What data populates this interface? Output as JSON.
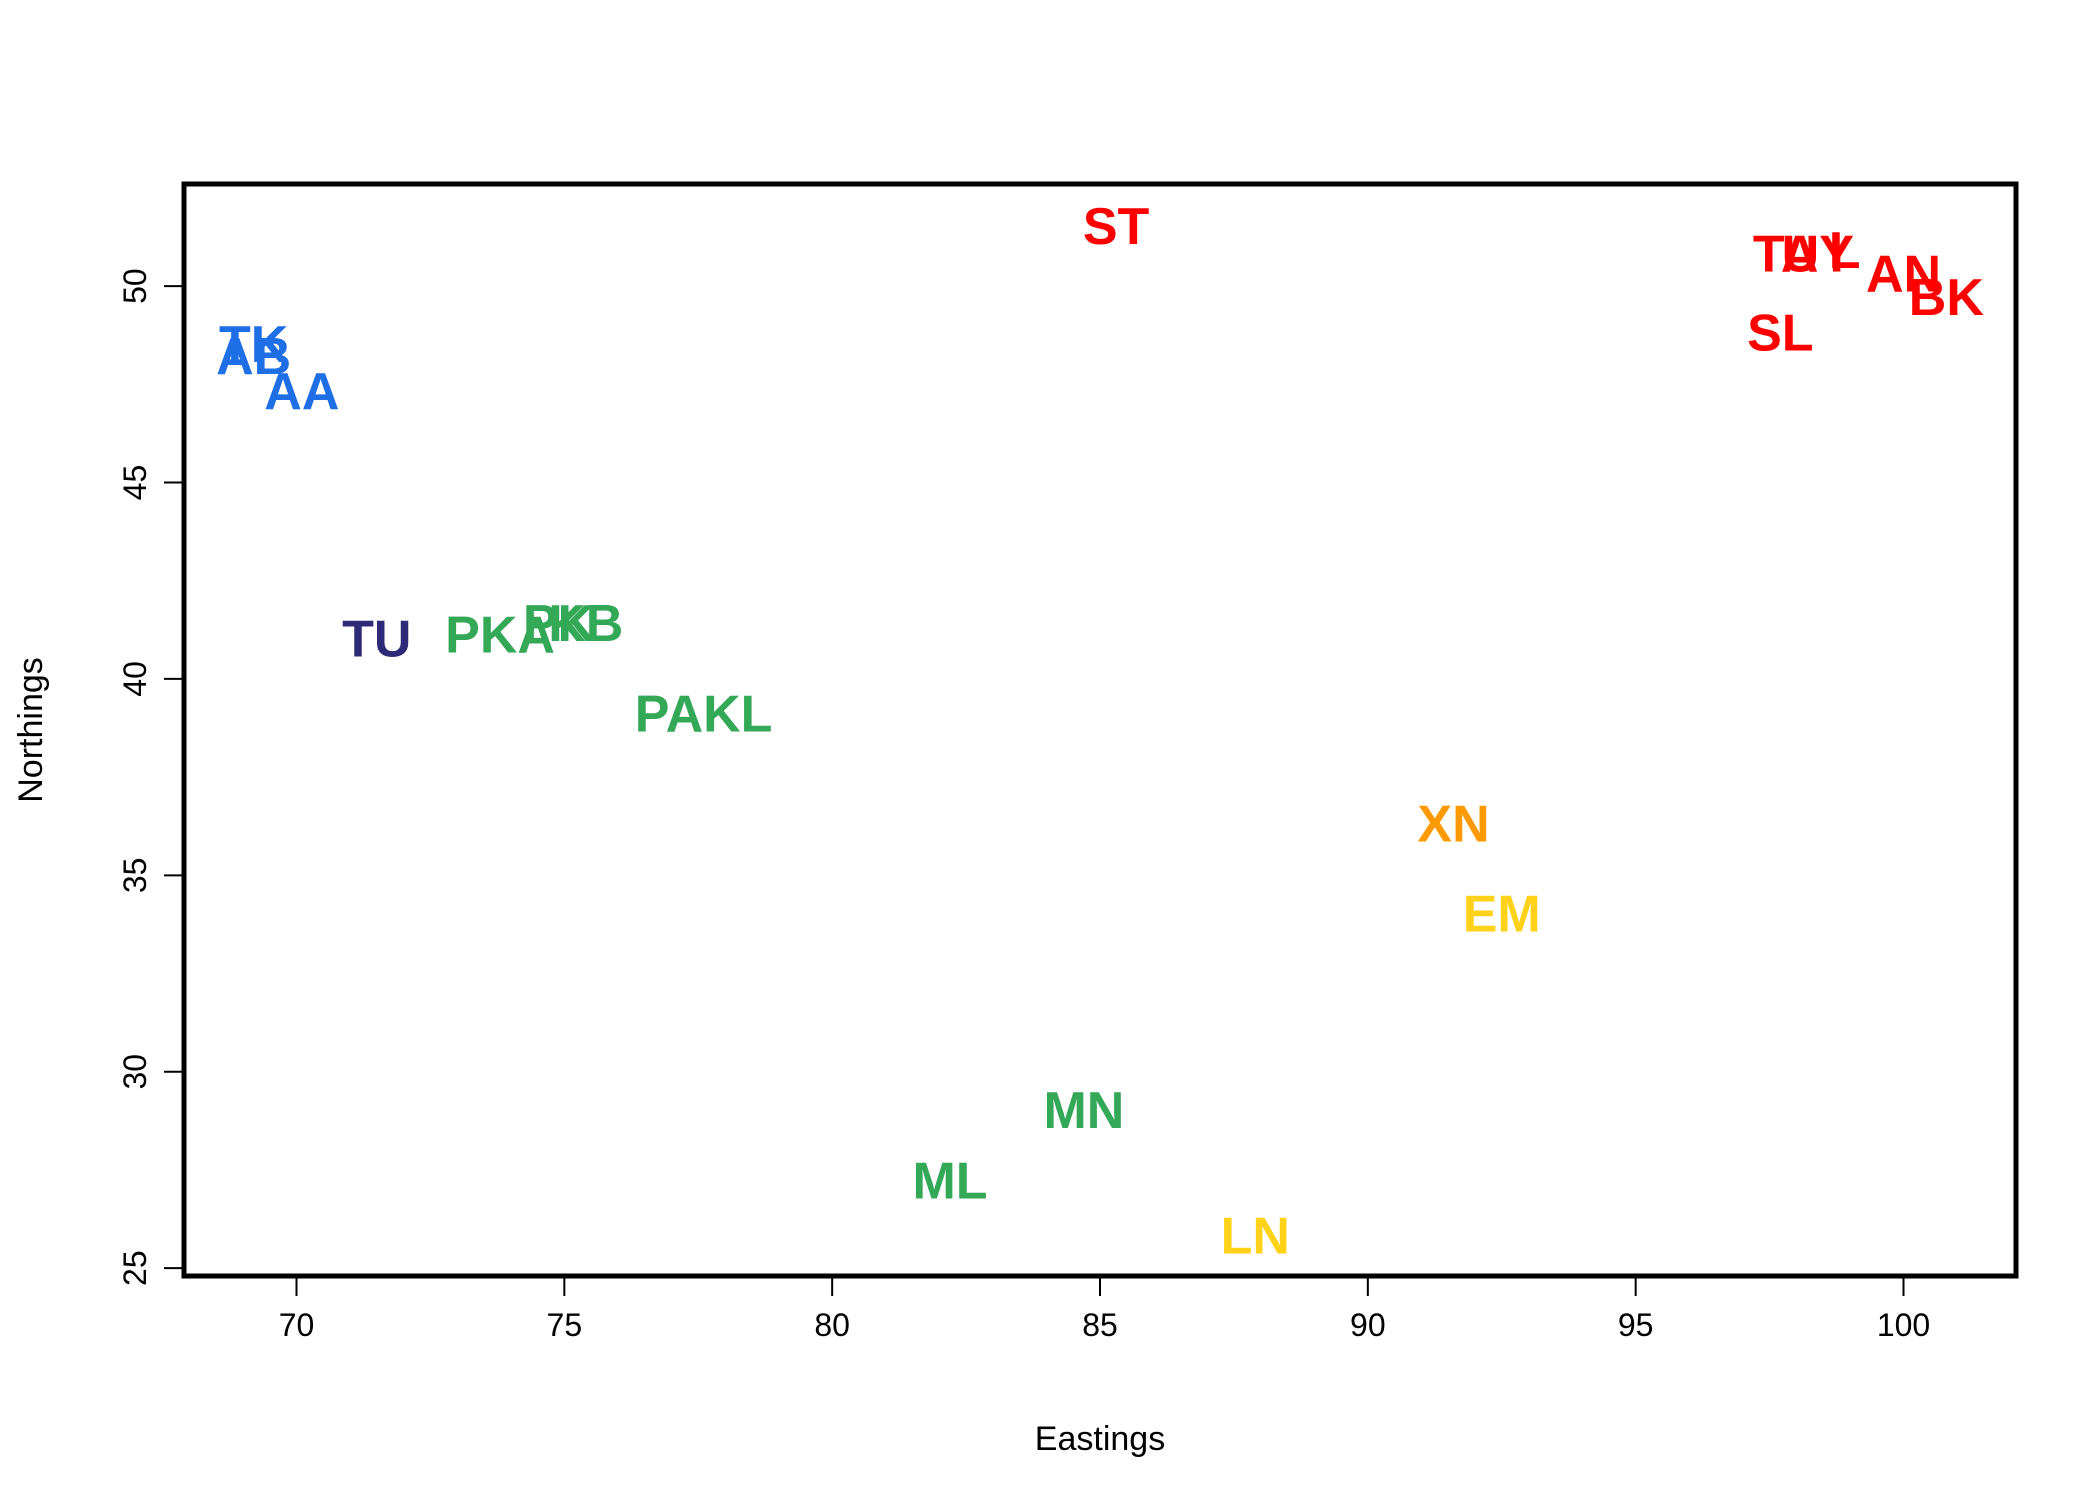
{
  "chart_data": {
    "type": "scatter",
    "title": "",
    "xlabel": "Eastings",
    "ylabel": "Northings",
    "xlim": [
      67.9,
      102.1
    ],
    "ylim": [
      24.8,
      52.6
    ],
    "xticks": [
      70,
      75,
      80,
      85,
      90,
      95,
      100
    ],
    "yticks": [
      25,
      30,
      35,
      40,
      45,
      50
    ],
    "grid": false,
    "legend": "none",
    "colors": {
      "red": "#ff0000",
      "blue": "#1e6ee6",
      "navy": "#2e2a78",
      "green": "#33a857",
      "orange": "#ff9900",
      "yellow": "#ffd21a"
    },
    "points": [
      {
        "label": "ST",
        "x": 85.3,
        "y": 51.5,
        "color": "red"
      },
      {
        "label": "TA",
        "x": 97.8,
        "y": 50.8,
        "color": "red"
      },
      {
        "label": "UY",
        "x": 98.4,
        "y": 50.8,
        "color": "red"
      },
      {
        "label": "L",
        "x": 98.9,
        "y": 50.9,
        "color": "red"
      },
      {
        "label": "AN",
        "x": 100.0,
        "y": 50.3,
        "color": "red"
      },
      {
        "label": "BK",
        "x": 100.8,
        "y": 49.7,
        "color": "red"
      },
      {
        "label": "SL",
        "x": 97.7,
        "y": 48.8,
        "color": "red"
      },
      {
        "label": "TK",
        "x": 69.2,
        "y": 48.5,
        "color": "blue"
      },
      {
        "label": "AB",
        "x": 69.2,
        "y": 48.2,
        "color": "blue"
      },
      {
        "label": "AA",
        "x": 70.1,
        "y": 47.3,
        "color": "blue"
      },
      {
        "label": "TU",
        "x": 71.5,
        "y": 41.0,
        "color": "navy"
      },
      {
        "label": "PKA",
        "x": 73.8,
        "y": 41.1,
        "color": "green"
      },
      {
        "label": "PK",
        "x": 74.9,
        "y": 41.4,
        "color": "green"
      },
      {
        "label": "KB",
        "x": 75.4,
        "y": 41.4,
        "color": "green"
      },
      {
        "label": "PAKL",
        "x": 77.6,
        "y": 39.1,
        "color": "green"
      },
      {
        "label": "MN",
        "x": 84.7,
        "y": 29.0,
        "color": "green"
      },
      {
        "label": "ML",
        "x": 82.2,
        "y": 27.2,
        "color": "green"
      },
      {
        "label": "XN",
        "x": 91.6,
        "y": 36.3,
        "color": "orange"
      },
      {
        "label": "EM",
        "x": 92.5,
        "y": 34.0,
        "color": "yellow"
      },
      {
        "label": "LN",
        "x": 87.9,
        "y": 25.8,
        "color": "yellow"
      }
    ]
  }
}
